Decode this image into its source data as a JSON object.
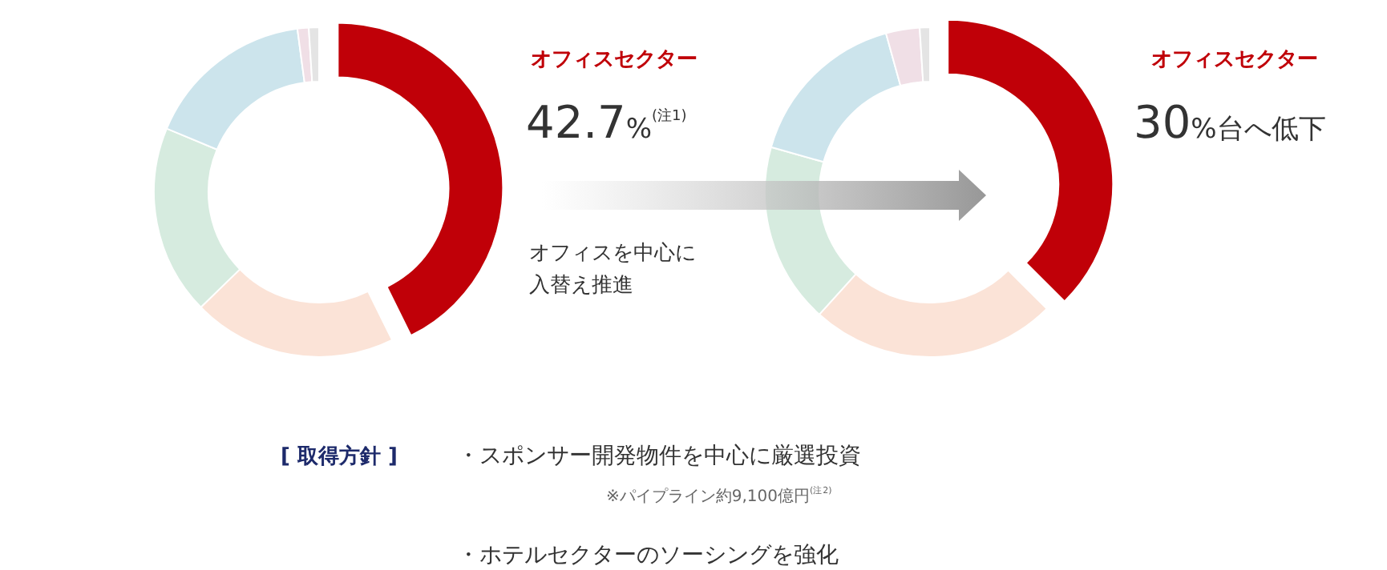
{
  "chart_data": [
    {
      "type": "donut",
      "categories": [
        "オフィスセクター",
        null,
        null,
        null,
        null,
        null
      ],
      "values": [
        42.7,
        20.0,
        18.6,
        16.6,
        1.1,
        1.0
      ],
      "colors": [
        "#c00008",
        "#fbe3d7",
        "#d6ebdf",
        "#cce4ec",
        "#f0dfe6",
        "#e4e4e4"
      ],
      "value_labels": [
        "42.7%$^{(注1)}$",
        null,
        null,
        null,
        null,
        null
      ],
      "annotations": [
        "オフィスを中心に",
        "入替え推進"
      ]
    },
    {
      "type": "donut",
      "categories": [
        "オフィスセクター",
        null,
        null,
        null,
        null,
        null
      ],
      "values": [
        37.5,
        24.2,
        17.7,
        16.3,
        3.3,
        1.0
      ],
      "colors": [
        "#c00008",
        "#fbe3d7",
        "#d6ebdf",
        "#cce4ec",
        "#f0dfe6",
        "#e4e4e4"
      ],
      "annotations": [
        "30%台へ低下"
      ]
    },
    {
      "type": "other",
      "title": "[ 取得方針 ]",
      "annotations": [
        "・スポンサー開発物件を中心に厳選投資",
        "※パイプライン約9,100億円$^{(注2)}$",
        "・ホテルセクターのソーシングを強化"
      ]
    }
  ]
}
